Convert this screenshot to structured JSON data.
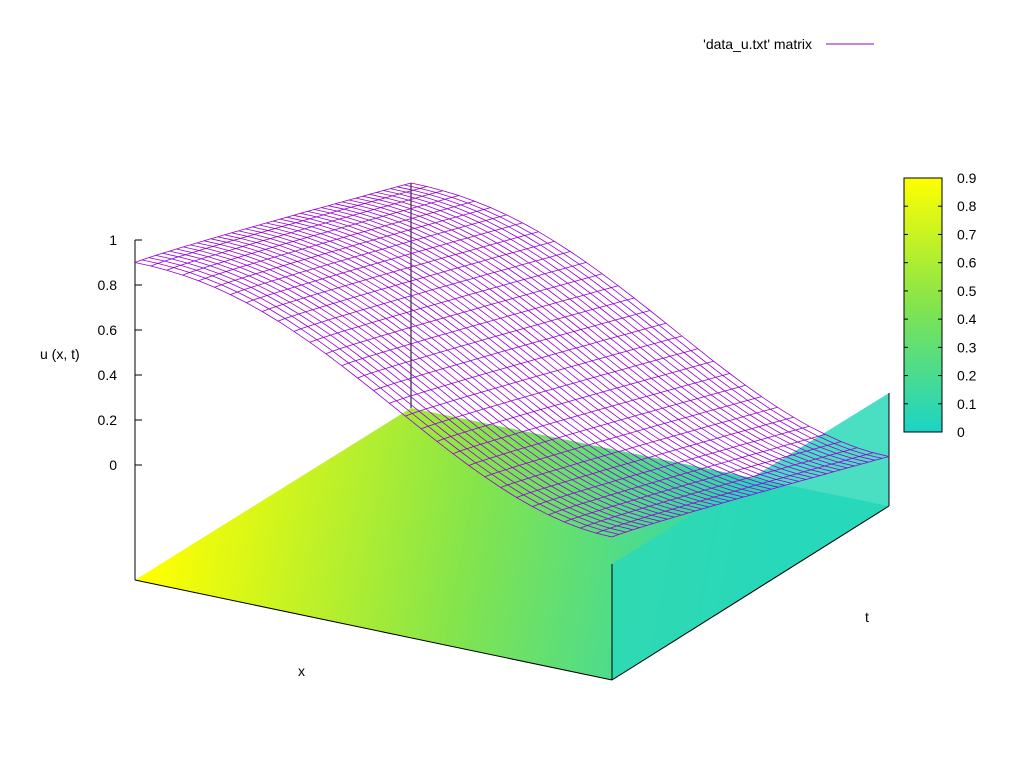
{
  "chart_data": {
    "type": "surface3d",
    "legend": {
      "label": "'data_u.txt' matrix",
      "color": "#9400d3",
      "placement": "top-right"
    },
    "zlabel": "u (x, t)",
    "xlabel": "x",
    "ylabel": "t",
    "z_ticks": [
      "1",
      "0.8",
      "0.6",
      "0.4",
      "0.2",
      "0"
    ],
    "z_tick_values": [
      1,
      0.8,
      0.6,
      0.4,
      0.2,
      0
    ],
    "zlim": [
      0,
      1
    ],
    "colorbar": {
      "ticks": [
        "0.9",
        "0.8",
        "0.7",
        "0.6",
        "0.5",
        "0.4",
        "0.3",
        "0.2",
        "0.1",
        "0"
      ],
      "tick_values": [
        0.9,
        0.8,
        0.7,
        0.6,
        0.5,
        0.4,
        0.3,
        0.2,
        0.1,
        0
      ],
      "range": [
        0,
        0.9
      ],
      "colors": {
        "low": "#1bd4c6",
        "mid": "#84e44c",
        "high": "#ffff00"
      }
    },
    "surface": {
      "grid_x": 30,
      "grid_t": 40,
      "corner_values": {
        "x0_t0": 0.9,
        "x1_t0": 0.12,
        "x0_t1": 1.0,
        "x1_t1": 0.22
      }
    },
    "grid": false
  }
}
